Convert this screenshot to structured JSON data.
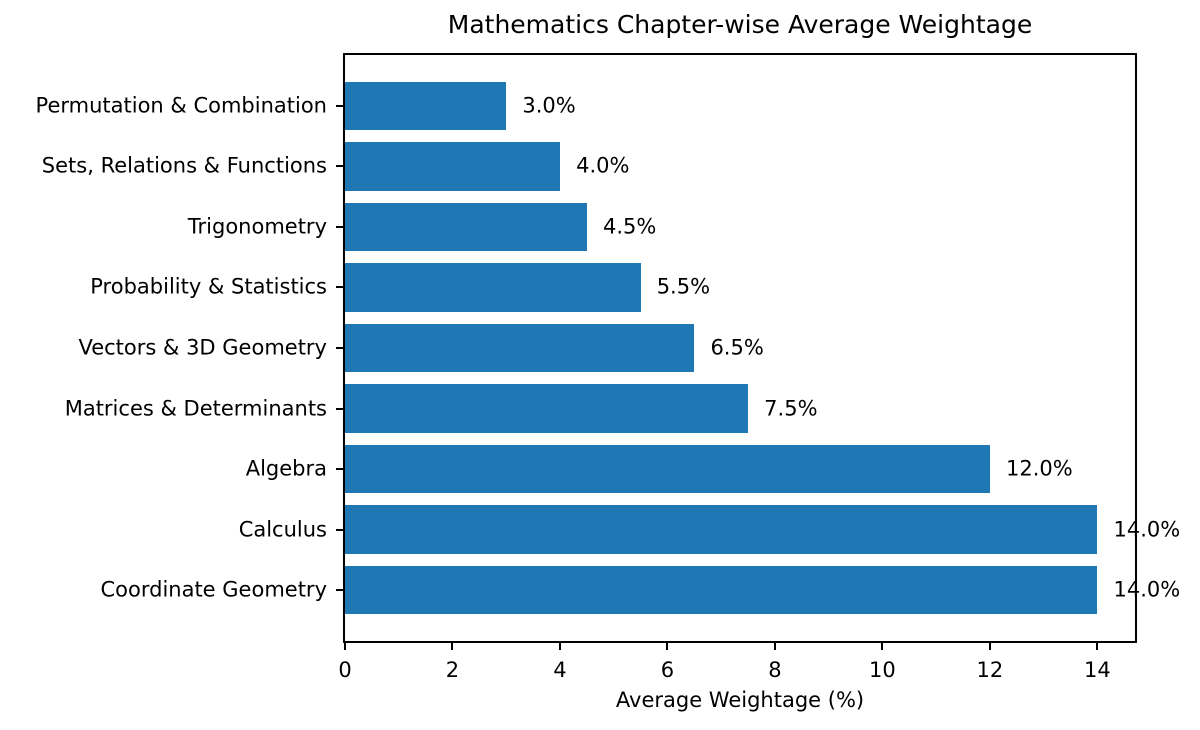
{
  "chart_data": {
    "type": "bar",
    "orientation": "horizontal",
    "title": "Mathematics Chapter-wise Average Weightage",
    "xlabel": "Average Weightage (%)",
    "ylabel": "",
    "categories": [
      "Permutation & Combination",
      "Sets, Relations & Functions",
      "Trigonometry",
      "Probability & Statistics",
      "Vectors & 3D Geometry",
      "Matrices & Determinants",
      "Algebra",
      "Calculus",
      "Coordinate Geometry"
    ],
    "values": [
      3.0,
      4.0,
      4.5,
      5.5,
      6.5,
      7.5,
      12.0,
      14.0,
      14.0
    ],
    "value_labels": [
      "3.0%",
      "4.0%",
      "4.5%",
      "5.5%",
      "6.5%",
      "7.5%",
      "12.0%",
      "14.0%",
      "14.0%"
    ],
    "x_ticks": [
      0,
      2,
      4,
      6,
      8,
      10,
      12,
      14
    ],
    "xlim": [
      0,
      14.7
    ],
    "bar_height_frac": 0.8,
    "bar_color": "#1f77b4",
    "text_color": "#000000",
    "background_color": "#ffffff",
    "grid": false,
    "legend": false
  }
}
